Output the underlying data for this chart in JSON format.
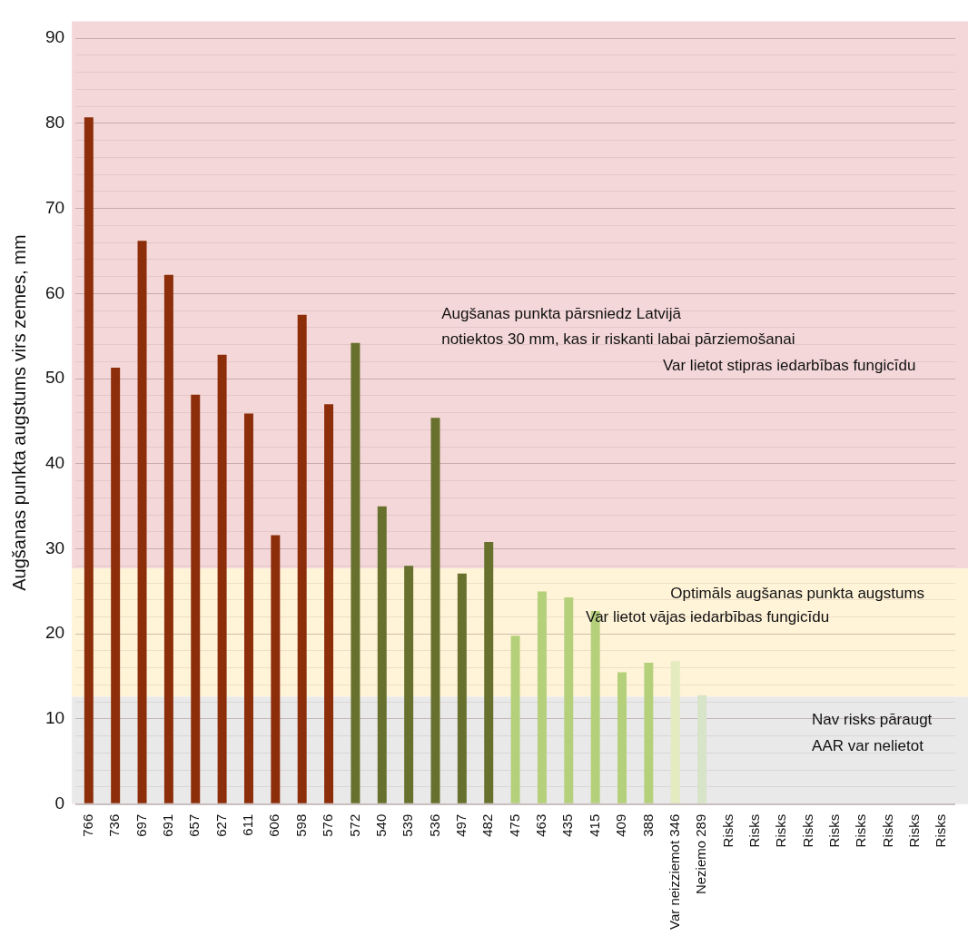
{
  "chart_data": {
    "type": "bar",
    "ylabel": "Augšanas punkta augstums virs zemes, mm",
    "categories": [
      "766",
      "736",
      "697",
      "691",
      "657",
      "627",
      "611",
      "606",
      "598",
      "576",
      "572",
      "540",
      "539",
      "536",
      "497",
      "482",
      "475",
      "463",
      "435",
      "415",
      "409",
      "388",
      "Var neizziemot 346",
      "Neziemo 289",
      "Risks",
      "Risks",
      "Risks",
      "Risks",
      "Risks",
      "Risks",
      "Risks",
      "Risks",
      "Risks"
    ],
    "values": [
      80.7,
      51.3,
      66.2,
      62.2,
      48.1,
      52.8,
      45.9,
      31.6,
      57.5,
      47.0,
      54.2,
      35.0,
      28.0,
      45.4,
      27.1,
      30.8,
      19.8,
      25.0,
      24.3,
      22.7,
      15.5,
      16.6,
      16.8,
      12.8,
      null,
      null,
      null,
      null,
      null,
      null,
      null,
      null,
      null
    ],
    "colors": [
      "#8c2e0a",
      "#8c2e0a",
      "#8c2e0a",
      "#8c2e0a",
      "#8c2e0a",
      "#8c2e0a",
      "#8c2e0a",
      "#8c2e0a",
      "#8c2e0a",
      "#8c2e0a",
      "#67702c",
      "#67702c",
      "#67702c",
      "#67702c",
      "#67702c",
      "#67702c",
      "#b5d07b",
      "#b5d07b",
      "#b5d07b",
      "#b5d07b",
      "#b5d07b",
      "#b5d07b",
      "#e3ebbf",
      "#d8e4c8",
      "#d8e4c8",
      "#d8e4c8",
      "#d8e4c8",
      "#d8e4c8",
      "#d8e4c8",
      "#d8e4c8",
      "#d8e4c8",
      "#d8e4c8",
      "#d8e4c8"
    ],
    "ylim": [
      0,
      92
    ],
    "yticks": [
      0,
      {
        "value": 2,
        "label": null
      },
      {
        "value": 4,
        "label": null
      },
      {
        "value": 6,
        "label": null
      },
      {
        "value": 8,
        "label": null
      },
      10,
      {
        "value": 12,
        "label": null
      },
      {
        "value": 14,
        "label": null
      },
      {
        "value": 16,
        "label": null
      },
      {
        "value": 18,
        "label": null
      },
      20,
      {
        "value": 22,
        "label": null
      },
      {
        "value": 24,
        "label": null
      },
      {
        "value": 26,
        "label": null
      },
      {
        "value": 28,
        "label": null
      },
      30,
      {
        "value": 32,
        "label": null
      },
      {
        "value": 34,
        "label": null
      },
      {
        "value": 36,
        "label": null
      },
      {
        "value": 38,
        "label": null
      },
      40,
      {
        "value": 42,
        "label": null
      },
      {
        "value": 44,
        "label": null
      },
      {
        "value": 46,
        "label": null
      },
      {
        "value": 48,
        "label": null
      },
      50,
      {
        "value": 52,
        "label": null
      },
      {
        "value": 54,
        "label": null
      },
      {
        "value": 56,
        "label": null
      },
      {
        "value": 58,
        "label": null
      },
      60,
      {
        "value": 62,
        "label": null
      },
      {
        "value": 64,
        "label": null
      },
      {
        "value": 66,
        "label": null
      },
      {
        "value": 68,
        "label": null
      },
      70,
      {
        "value": 72,
        "label": null
      },
      {
        "value": 74,
        "label": null
      },
      {
        "value": 76,
        "label": null
      },
      {
        "value": 78,
        "label": null
      },
      80,
      {
        "value": 82,
        "label": null
      },
      {
        "value": 84,
        "label": null
      },
      {
        "value": 86,
        "label": null
      },
      {
        "value": 88,
        "label": null
      },
      90
    ],
    "bands": [
      {
        "axis": "y",
        "from": 27.7,
        "to": 92,
        "color": "#f4d7d9",
        "label": "Augšanas punkta pārsniedz Latvijā\nnotiektos 30 mm, kas ir riskanti labai pārziemošanai\nVar lietot stipras iedarbības fungicīdu"
      },
      {
        "axis": "y",
        "from": 12.6,
        "to": 27.7,
        "color": "#fff3d8",
        "label": "Optimāls augšanas punkta augstums\nVar lietot vājas iedarbības fungicīdu"
      },
      {
        "axis": "y",
        "from": 0,
        "to": 12.6,
        "color": "#e9e9e9",
        "label": "Nav risks pāraugt\nAAR var nelietot"
      }
    ],
    "grid": "y",
    "legend": false
  }
}
